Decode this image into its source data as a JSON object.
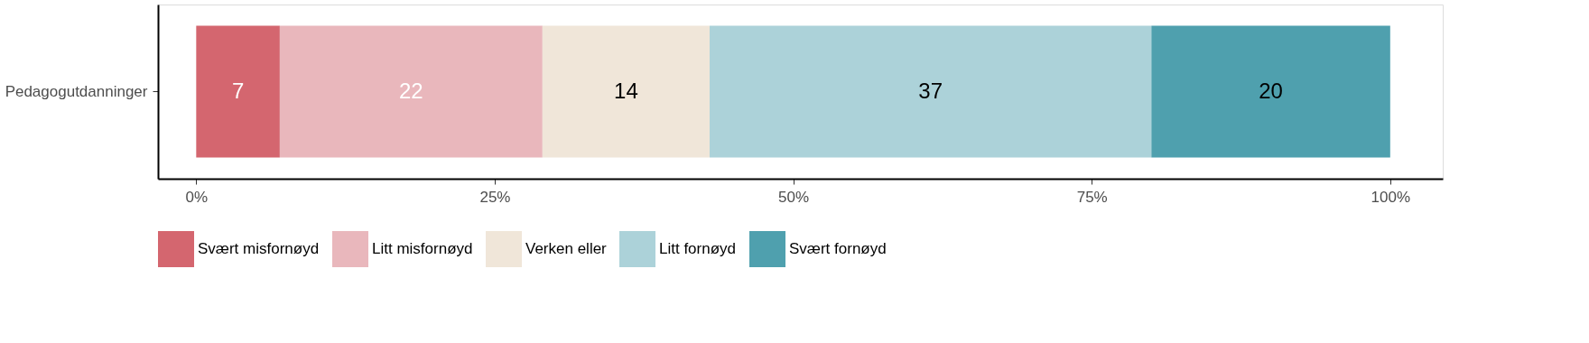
{
  "chart_data": {
    "type": "bar",
    "orientation": "horizontal",
    "stacked": true,
    "data_labels": true,
    "categories": [
      "Pedagogutdanninger"
    ],
    "series": [
      {
        "name": "Svært misfornøyd",
        "color": "#d4666f",
        "values": [
          7
        ]
      },
      {
        "name": "Litt misfornøyd",
        "color": "#e9b7bc",
        "values": [
          22
        ]
      },
      {
        "name": "Verken eller",
        "color": "#f0e6d9",
        "values": [
          14
        ]
      },
      {
        "name": "Litt fornøyd",
        "color": "#acd2d9",
        "values": [
          37
        ]
      },
      {
        "name": "Svært fornøyd",
        "color": "#4fa0ae",
        "values": [
          20
        ]
      }
    ],
    "xlim": [
      -3.2,
      104.4
    ],
    "xticks": [
      {
        "value": 0,
        "label": "0%"
      },
      {
        "value": 25,
        "label": "25%"
      },
      {
        "value": 50,
        "label": "50%"
      },
      {
        "value": 75,
        "label": "75%"
      },
      {
        "value": 100,
        "label": "100%"
      }
    ],
    "grid": false,
    "legend": "bottom"
  }
}
